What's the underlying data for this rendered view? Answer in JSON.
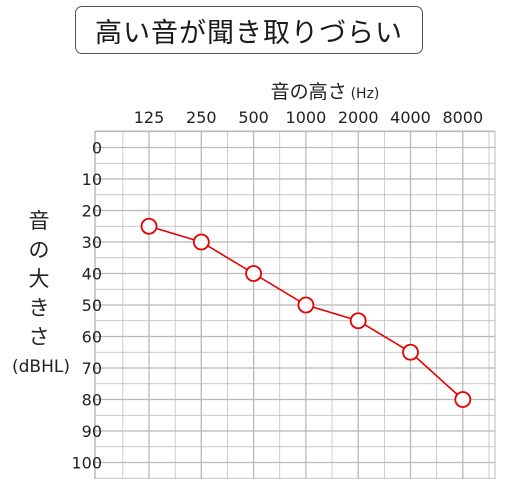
{
  "title": "高い音が聞き取りづらい",
  "chart_data": {
    "type": "line",
    "xlabel": "音の高さ",
    "xlabel_unit": "(Hz)",
    "ylabel": "音の大きさ",
    "ylabel_unit": "(dBHL)",
    "categories": [
      "125",
      "250",
      "500",
      "1000",
      "2000",
      "4000",
      "8000"
    ],
    "yticks": [
      "0",
      "10",
      "20",
      "30",
      "40",
      "50",
      "60",
      "70",
      "80",
      "90",
      "100"
    ],
    "ylim": [
      0,
      100
    ],
    "y_inverted": true,
    "grid": true,
    "series": [
      {
        "values": [
          25,
          30,
          40,
          50,
          55,
          65,
          80
        ],
        "color": "#e60000",
        "marker": "open-circle"
      }
    ],
    "colors": {
      "grid": "#b8b8b8",
      "axis": "#999999"
    }
  }
}
